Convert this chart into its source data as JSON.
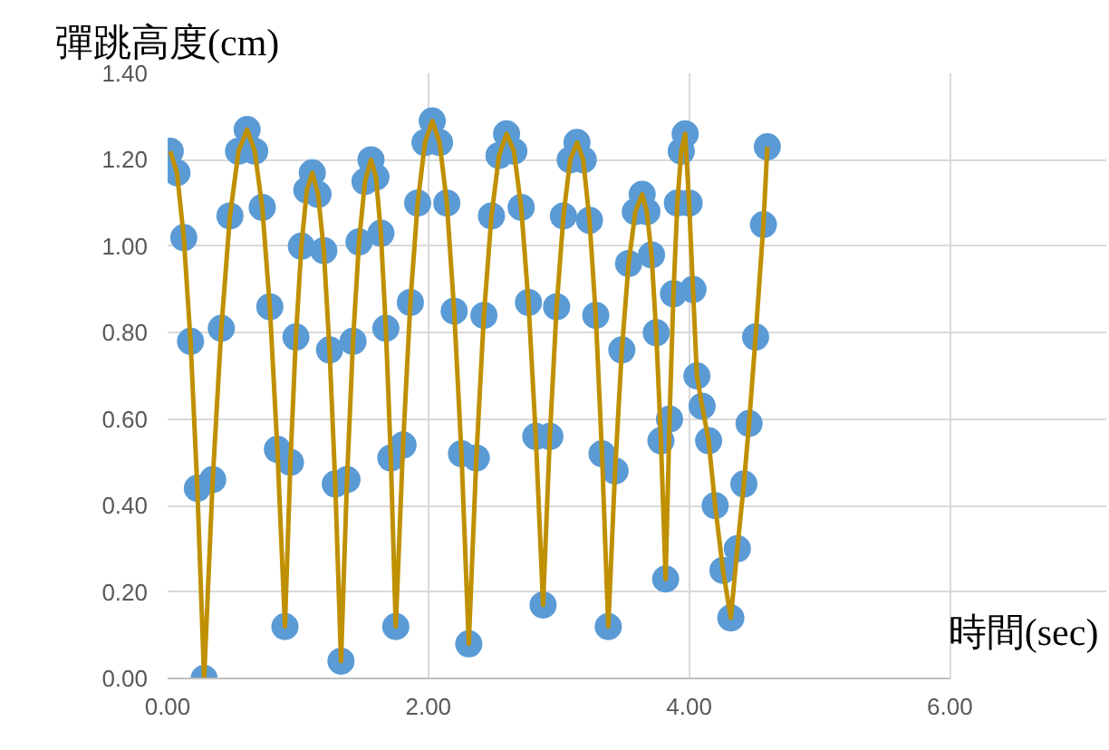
{
  "chart_data": {
    "type": "scatter",
    "xlabel": "時間(sec)",
    "ylabel": "彈跳高度(cm)",
    "x": [
      0.02,
      0.072,
      0.124,
      0.176,
      0.228,
      0.28,
      0.346,
      0.412,
      0.478,
      0.544,
      0.61,
      0.668,
      0.726,
      0.784,
      0.842,
      0.9,
      0.942,
      0.984,
      1.026,
      1.068,
      1.11,
      1.154,
      1.198,
      1.242,
      1.286,
      1.33,
      1.376,
      1.422,
      1.468,
      1.514,
      1.56,
      1.598,
      1.636,
      1.674,
      1.712,
      1.75,
      1.806,
      1.862,
      1.918,
      1.974,
      2.03,
      2.086,
      2.142,
      2.198,
      2.254,
      2.31,
      2.368,
      2.426,
      2.484,
      2.542,
      2.6,
      2.656,
      2.712,
      2.768,
      2.824,
      2.88,
      2.932,
      2.984,
      3.036,
      3.088,
      3.14,
      3.188,
      3.236,
      3.284,
      3.332,
      3.38,
      3.432,
      3.484,
      3.536,
      3.588,
      3.64,
      3.676,
      3.712,
      3.748,
      3.784,
      3.82,
      3.85,
      3.88,
      3.91,
      3.94,
      3.97,
      4.0,
      4.03,
      4.06,
      4.1,
      4.15,
      4.2,
      4.26,
      4.32,
      4.37,
      4.42,
      4.46,
      4.51,
      4.57,
      4.6
    ],
    "series": [
      {
        "type": "line",
        "color": "#bf9000",
        "marker": "none",
        "line_style": "solid",
        "values": [
          1.22,
          1.17,
          1.02,
          0.78,
          0.44,
          0.0,
          0.46,
          0.81,
          1.07,
          1.22,
          1.27,
          1.22,
          1.09,
          0.86,
          0.53,
          0.12,
          0.5,
          0.79,
          1.0,
          1.13,
          1.17,
          1.12,
          0.99,
          0.76,
          0.45,
          0.04,
          0.46,
          0.78,
          1.01,
          1.15,
          1.2,
          1.16,
          1.03,
          0.81,
          0.51,
          0.12,
          0.54,
          0.87,
          1.1,
          1.24,
          1.29,
          1.24,
          1.1,
          0.85,
          0.52,
          0.08,
          0.51,
          0.84,
          1.07,
          1.21,
          1.26,
          1.22,
          1.09,
          0.87,
          0.56,
          0.17,
          0.56,
          0.86,
          1.07,
          1.2,
          1.24,
          1.2,
          1.06,
          0.84,
          0.52,
          0.12,
          0.48,
          0.76,
          0.96,
          1.08,
          1.12,
          1.08,
          0.98,
          0.8,
          0.55,
          0.23,
          0.6,
          0.89,
          1.1,
          1.22,
          1.26,
          1.1,
          0.9,
          0.7,
          0.63,
          0.55,
          0.4,
          0.25,
          0.14,
          0.3,
          0.45,
          0.59,
          0.79,
          1.05,
          1.23
        ]
      },
      {
        "color": "#5b9bd5",
        "marker": "circle",
        "values": [
          1.22,
          1.17,
          1.02,
          0.78,
          0.44,
          0.0,
          0.46,
          0.81,
          1.07,
          1.22,
          1.27,
          1.22,
          1.09,
          0.86,
          0.53,
          0.12,
          0.5,
          0.79,
          1.0,
          1.13,
          1.17,
          1.12,
          0.99,
          0.76,
          0.45,
          0.04,
          0.46,
          0.78,
          1.01,
          1.15,
          1.2,
          1.16,
          1.03,
          0.81,
          0.51,
          0.12,
          0.54,
          0.87,
          1.1,
          1.24,
          1.29,
          1.24,
          1.1,
          0.85,
          0.52,
          0.08,
          0.51,
          0.84,
          1.07,
          1.21,
          1.26,
          1.22,
          1.09,
          0.87,
          0.56,
          0.17,
          0.56,
          0.86,
          1.07,
          1.2,
          1.24,
          1.2,
          1.06,
          0.84,
          0.52,
          0.12,
          0.48,
          0.76,
          0.96,
          1.08,
          1.12,
          1.08,
          0.98,
          0.8,
          0.55,
          0.23,
          0.6,
          0.89,
          1.1,
          1.22,
          1.26,
          1.1,
          0.9,
          0.7,
          0.63,
          0.55,
          0.4,
          0.25,
          0.14,
          0.3,
          0.45,
          0.59,
          0.79,
          1.05,
          1.23
        ]
      }
    ],
    "xlim": [
      0,
      6
    ],
    "ylim": [
      0,
      1.4
    ],
    "xticks": [
      {
        "value": 0,
        "label": "0.00"
      },
      {
        "value": 2,
        "label": "2.00"
      },
      {
        "value": 4,
        "label": "4.00"
      },
      {
        "value": 6,
        "label": "6.00"
      }
    ],
    "yticks": [
      {
        "value": 0,
        "label": "0.00"
      },
      {
        "value": 0.2,
        "label": "0.20"
      },
      {
        "value": 0.4,
        "label": "0.40"
      },
      {
        "value": 0.6,
        "label": "0.60"
      },
      {
        "value": 0.8,
        "label": "0.80"
      },
      {
        "value": 1.0,
        "label": "1.00"
      },
      {
        "value": 1.2,
        "label": "1.20"
      },
      {
        "value": 1.4,
        "label": "1.40"
      }
    ],
    "grid": true
  }
}
